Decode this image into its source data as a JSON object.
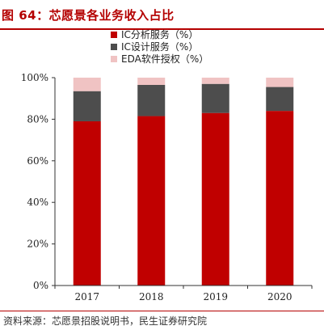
{
  "header": {
    "title": "图 64：芯愿景各业务收入占比"
  },
  "footer": {
    "source": "资料来源：芯愿景招股说明书，民生证券研究院"
  },
  "chart_data": {
    "type": "bar",
    "stacked": true,
    "categories": [
      "2017",
      "2018",
      "2019",
      "2020"
    ],
    "series": [
      {
        "name": "IC分析服务（%）",
        "color": "#c00000",
        "values": [
          79,
          81.5,
          83,
          84
        ]
      },
      {
        "name": "IC设计服务（%）",
        "color": "#4d4d4d",
        "values": [
          14.5,
          15,
          14,
          11.5
        ]
      },
      {
        "name": "EDA软件授权（%）",
        "color": "#f0c3c3",
        "values": [
          6.5,
          3.5,
          3,
          4.5
        ]
      }
    ],
    "ylim": [
      0,
      100
    ],
    "yticks": [
      "0%",
      "20%",
      "40%",
      "60%",
      "80%",
      "100%"
    ],
    "legend_position": "top-center",
    "grid": false
  }
}
